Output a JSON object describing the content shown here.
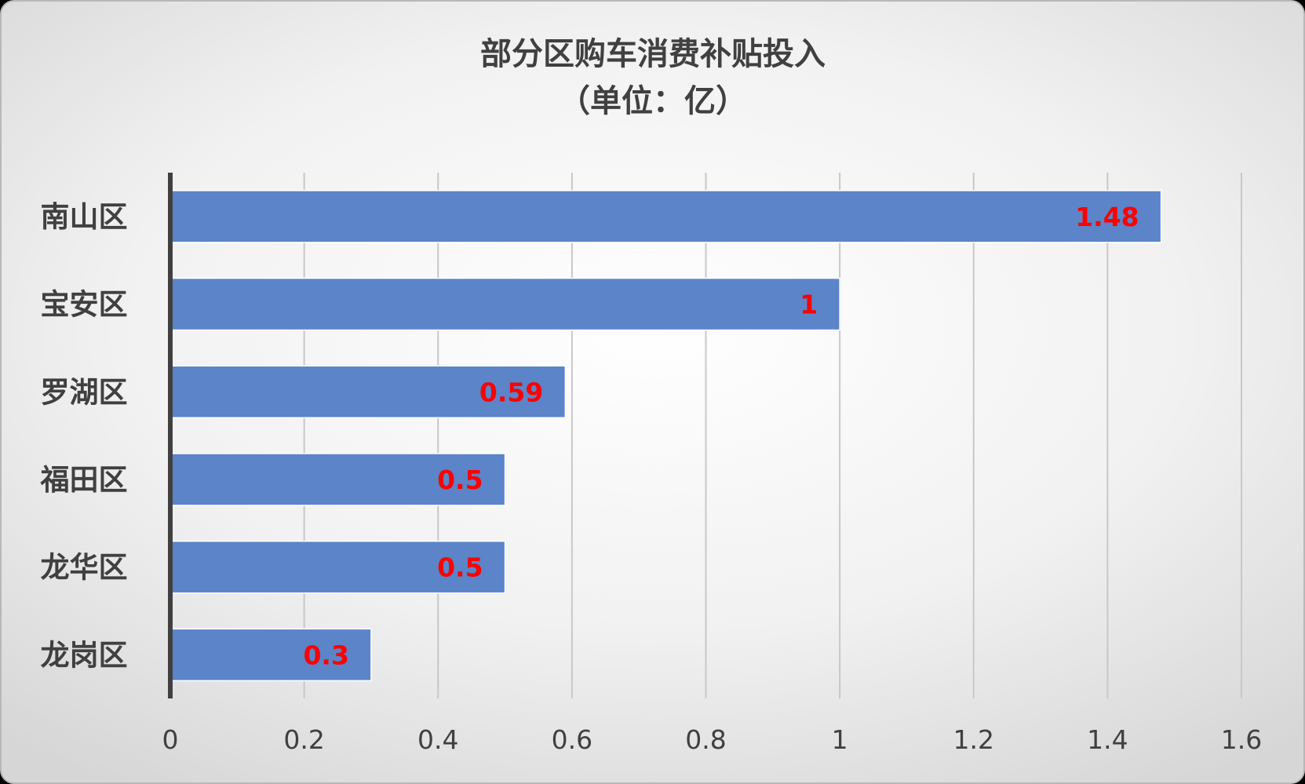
{
  "chart_data": {
    "type": "bar",
    "orientation": "horizontal",
    "title": "部分区购车消费补贴投入",
    "subtitle": "（单位：亿）",
    "categories": [
      "南山区",
      "宝安区",
      "罗湖区",
      "福田区",
      "龙华区",
      "龙岗区"
    ],
    "values": [
      1.48,
      1,
      0.59,
      0.5,
      0.5,
      0.3
    ],
    "data_labels": [
      "1.48",
      "1",
      "0.59",
      "0.5",
      "0.5",
      "0.3"
    ],
    "xlim": [
      0,
      1.6
    ],
    "xticks": [
      "0",
      "0.2",
      "0.4",
      "0.6",
      "0.8",
      "1",
      "1.2",
      "1.4",
      "1.6"
    ],
    "grid": "vertical",
    "legend": "none",
    "colors": {
      "bar": "#5b84c9",
      "bar_border": "#ffffff",
      "data_label": "#ff0000",
      "text": "#404040",
      "axis": "#404040",
      "grid": "#c8c8c8"
    }
  }
}
